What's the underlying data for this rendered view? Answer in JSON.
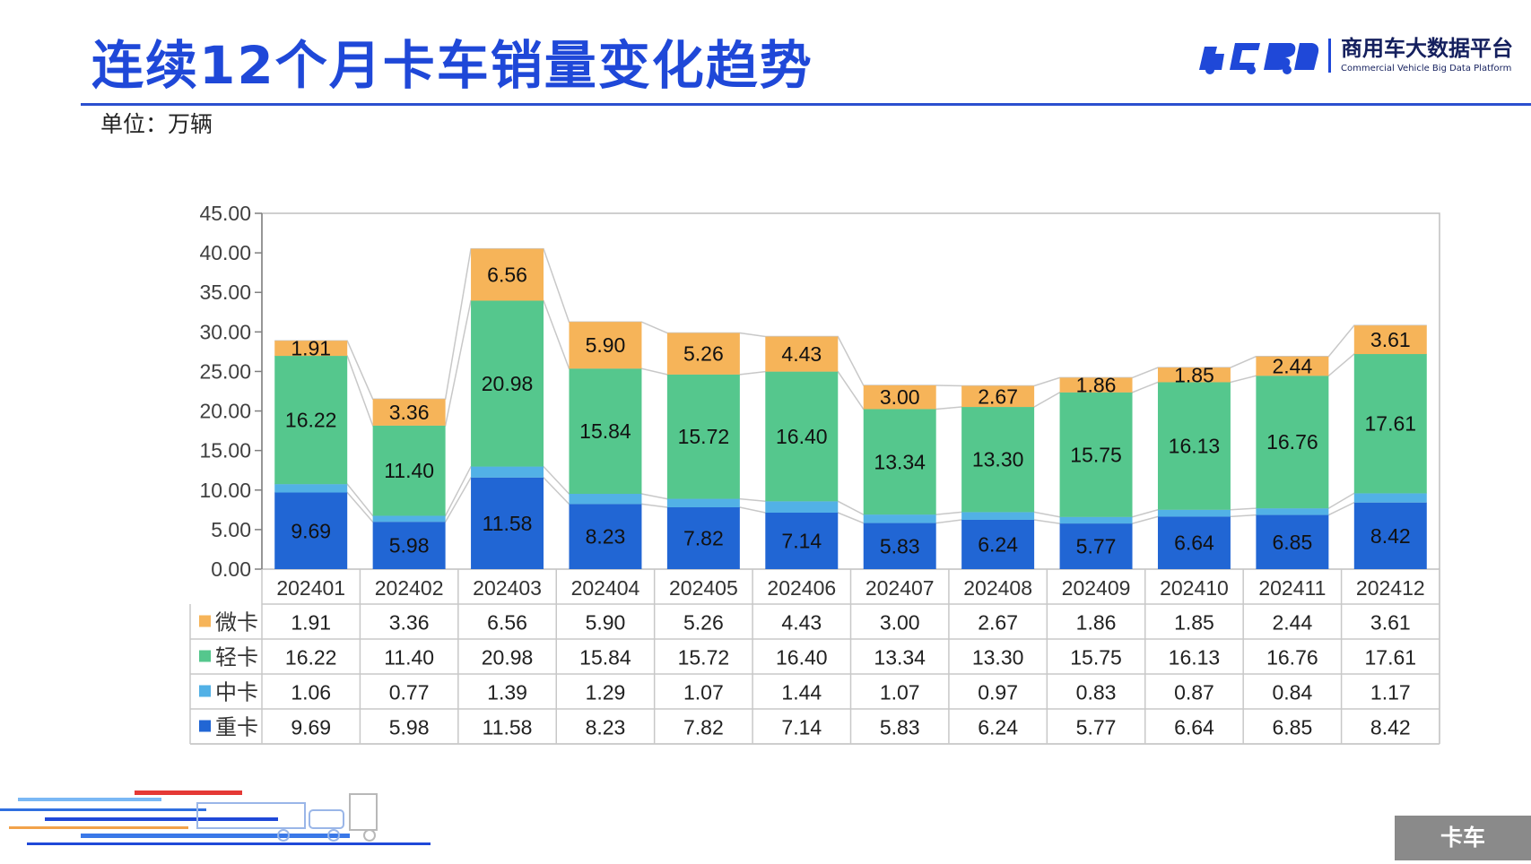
{
  "header": {
    "title": "连续12个月卡车销量变化趋势",
    "unit_label": "单位：万辆"
  },
  "logo": {
    "name_cn": "商用车大数据平台",
    "name_en": "Commercial Vehicle Big Data Platform"
  },
  "footer": {
    "tag": "卡车"
  },
  "colors": {
    "title": "#1f48d8",
    "heavy": "#2166d4",
    "medium": "#52b1e6",
    "light": "#55c78d",
    "micro": "#f6b459"
  },
  "chart_data": {
    "type": "bar",
    "stacked": true,
    "categories": [
      "202401",
      "202402",
      "202403",
      "202404",
      "202405",
      "202406",
      "202407",
      "202408",
      "202409",
      "202410",
      "202411",
      "202412"
    ],
    "series": [
      {
        "name": "微卡",
        "color": "#f6b459",
        "values": [
          1.91,
          3.36,
          6.56,
          5.9,
          5.26,
          4.43,
          3.0,
          2.67,
          1.86,
          1.85,
          2.44,
          3.61
        ]
      },
      {
        "name": "轻卡",
        "color": "#55c78d",
        "values": [
          16.22,
          11.4,
          20.98,
          15.84,
          15.72,
          16.4,
          13.34,
          13.3,
          15.75,
          16.13,
          16.76,
          17.61
        ]
      },
      {
        "name": "中卡",
        "color": "#52b1e6",
        "values": [
          1.06,
          0.77,
          1.39,
          1.29,
          1.07,
          1.44,
          1.07,
          0.97,
          0.83,
          0.87,
          0.84,
          1.17
        ]
      },
      {
        "name": "重卡",
        "color": "#2166d4",
        "values": [
          9.69,
          5.98,
          11.58,
          8.23,
          7.82,
          7.14,
          5.83,
          6.24,
          5.77,
          6.64,
          6.85,
          8.42
        ]
      }
    ],
    "series_labels_shown_on_bars": [
      "微卡",
      "轻卡",
      "重卡"
    ],
    "ylim": [
      0,
      45
    ],
    "yticks": [
      "0.00",
      "5.00",
      "10.00",
      "15.00",
      "20.00",
      "25.00",
      "30.00",
      "35.00",
      "40.00",
      "45.00"
    ],
    "data_table": true,
    "xlabel": "",
    "ylabel": ""
  }
}
